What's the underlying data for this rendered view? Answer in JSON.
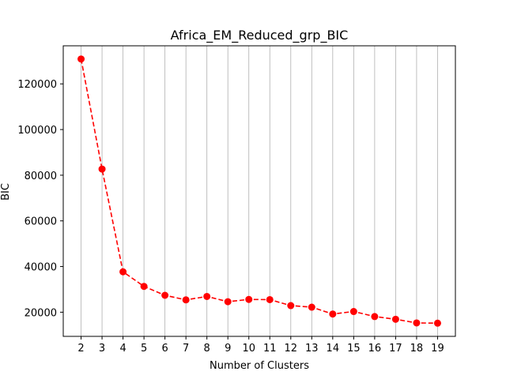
{
  "chart_data": {
    "type": "line",
    "title": "Africa_EM_Reduced_grp_BIC",
    "xlabel": "Number of Clusters",
    "ylabel": "BIC",
    "x": [
      2,
      3,
      4,
      5,
      6,
      7,
      8,
      9,
      10,
      11,
      12,
      13,
      14,
      15,
      16,
      17,
      18,
      19
    ],
    "series": [
      {
        "values": [
          130900,
          82700,
          37700,
          31300,
          27400,
          25400,
          26900,
          24600,
          25600,
          25500,
          22900,
          22200,
          19200,
          20300,
          18100,
          16900,
          15300,
          15200
        ],
        "color": "#ff0000",
        "line_style": "dashed",
        "marker": "circle"
      }
    ],
    "xticks": [
      2,
      3,
      4,
      5,
      6,
      7,
      8,
      9,
      10,
      11,
      12,
      13,
      14,
      15,
      16,
      17,
      18,
      19
    ],
    "yticks": [
      20000,
      40000,
      60000,
      80000,
      100000,
      120000
    ],
    "xlim": [
      1.15,
      19.85
    ],
    "ylim": [
      9415,
      136685
    ],
    "grid": "vertical",
    "grid_color": "#b0b0b0"
  }
}
